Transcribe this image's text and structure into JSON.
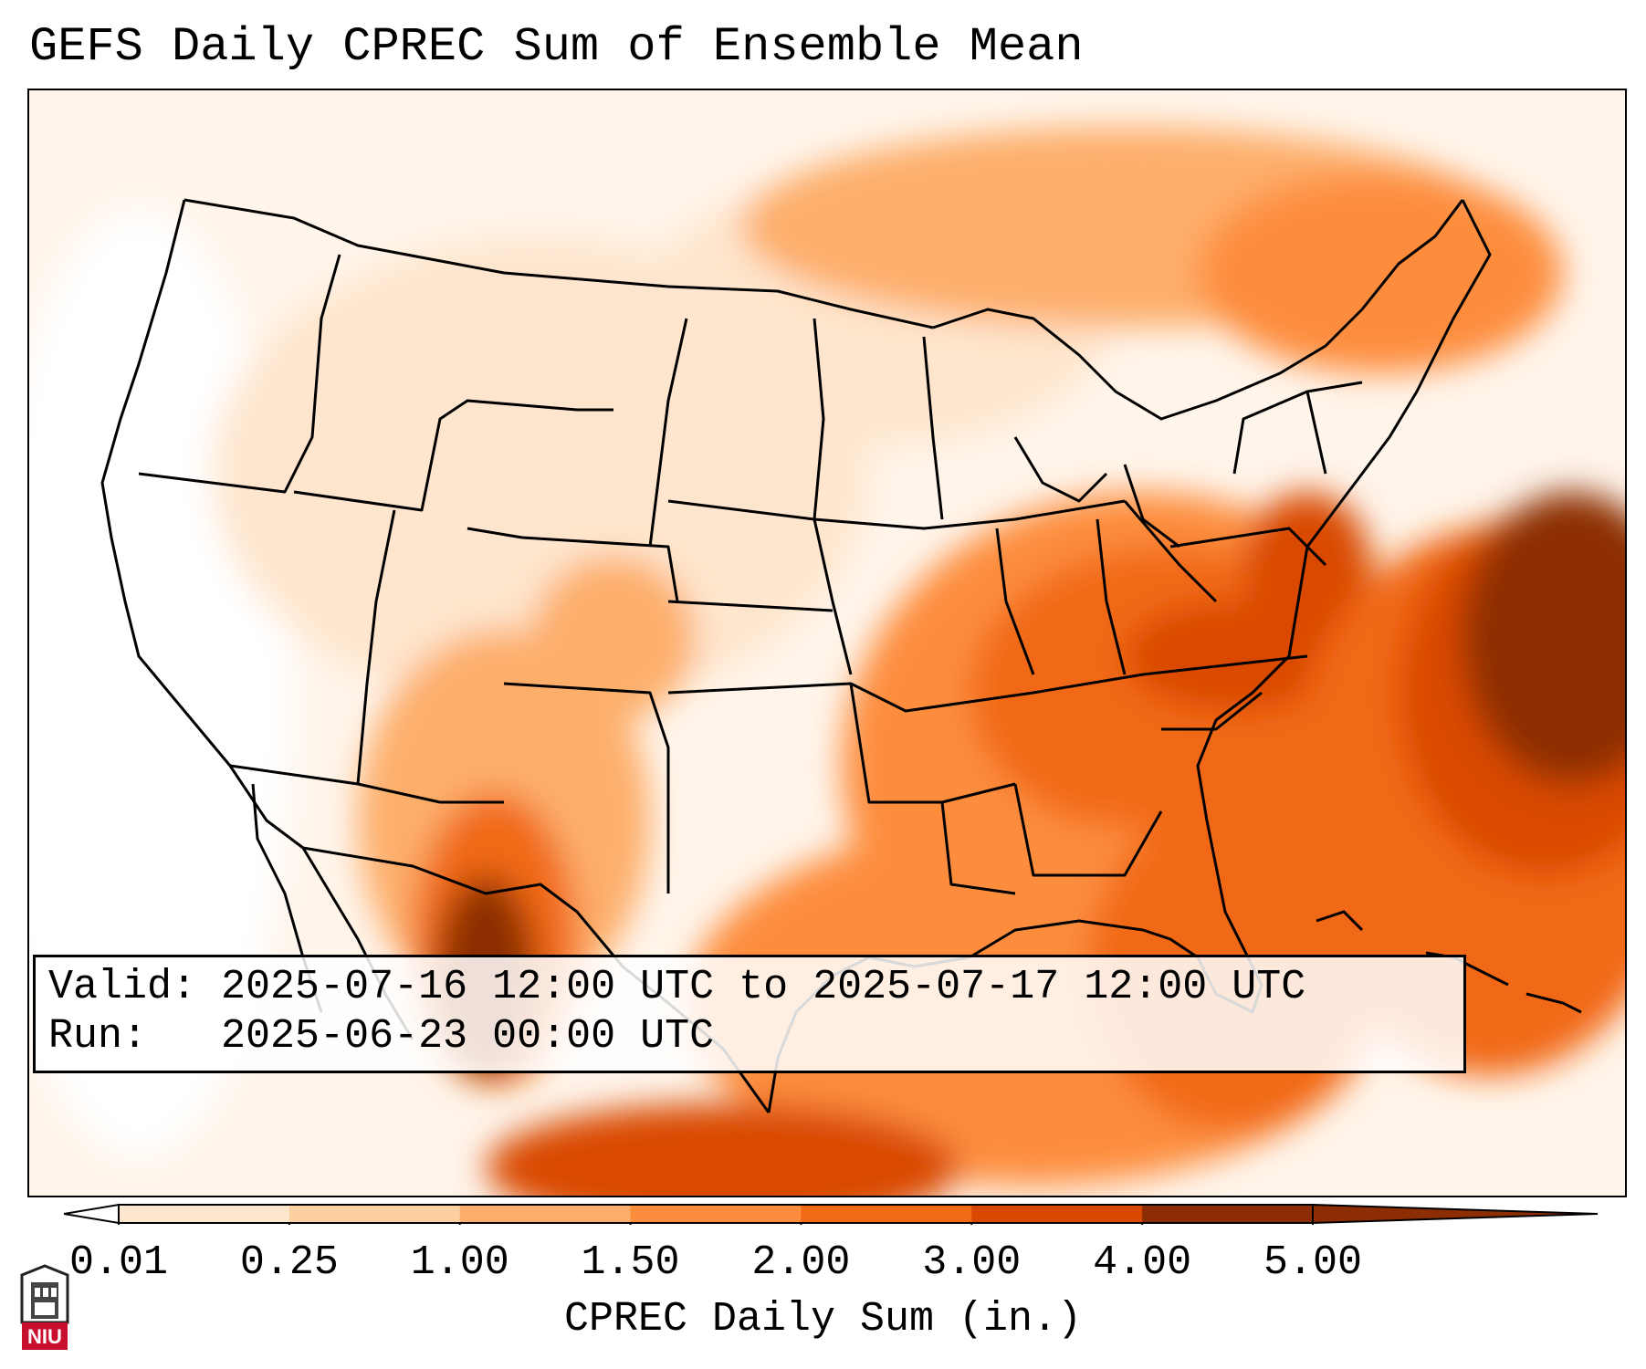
{
  "title": "GEFS Daily CPREC Sum of Ensemble Mean",
  "info": {
    "valid_label": "Valid:",
    "valid_value": "2025-07-16 12:00 UTC to 2025-07-17 12:00 UTC",
    "run_label": "Run:",
    "run_value": "2025-06-23 00:00 UTC"
  },
  "colorbar": {
    "label": "CPREC Daily Sum (in.)",
    "ticks": [
      "0.01",
      "0.25",
      "1.00",
      "1.50",
      "2.00",
      "3.00",
      "4.00",
      "5.00"
    ],
    "colors": [
      "#fff5eb",
      "#fee6ce",
      "#fdd0a2",
      "#fdae6b",
      "#fd8d3c",
      "#f16913",
      "#d94801",
      "#8c2d04"
    ],
    "under_color": "#ffffff",
    "over_color": "#8c2d04"
  },
  "logo": {
    "text": "NIU",
    "color": "#c8102e"
  }
}
